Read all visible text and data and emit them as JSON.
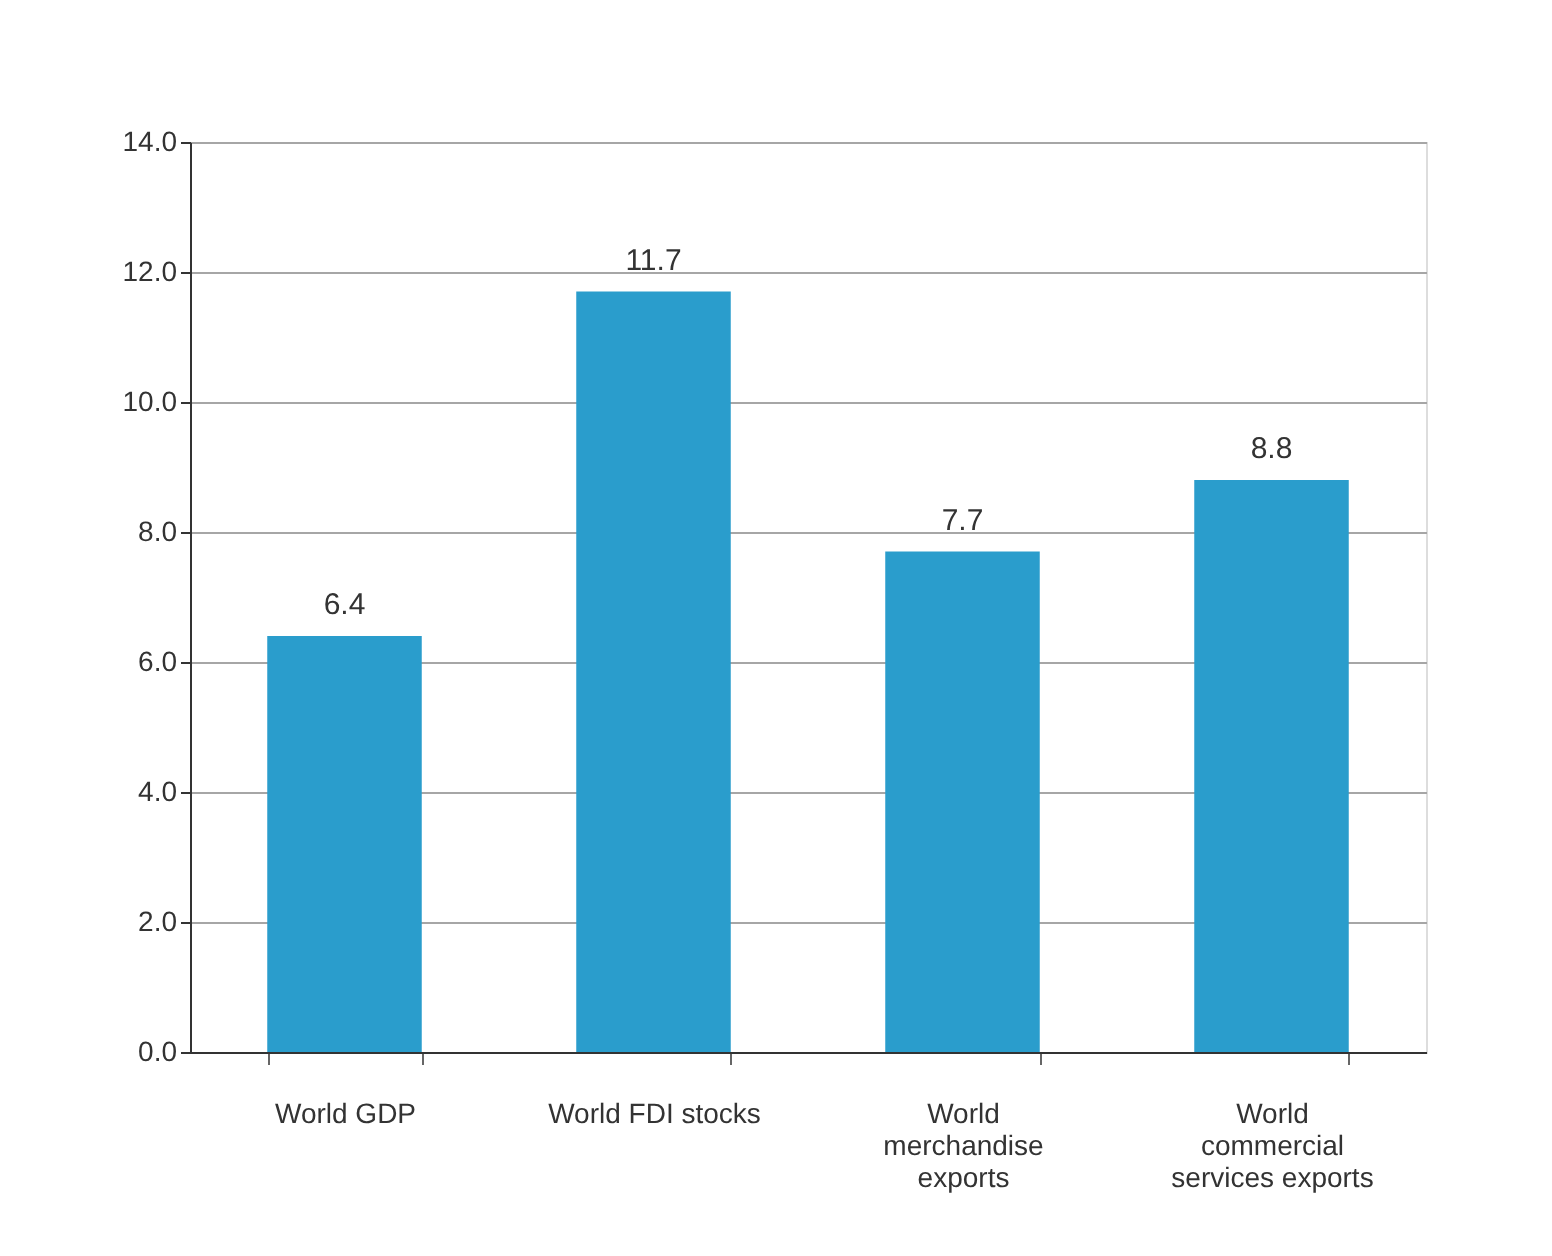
{
  "chart_data": {
    "type": "bar",
    "categories": [
      "World GDP",
      "World FDI stocks",
      "World\nmerchandise\nexports",
      "World\ncommercial\nservices exports"
    ],
    "values": [
      6.4,
      11.7,
      7.7,
      8.8
    ],
    "color": "#2a9dcc",
    "ylim": [
      0,
      14
    ],
    "yticks": [
      {
        "value": 0,
        "label": "0.0"
      },
      {
        "value": 2,
        "label": "2.0"
      },
      {
        "value": 4,
        "label": "4.0"
      },
      {
        "value": 6,
        "label": "6.0"
      },
      {
        "value": 8,
        "label": "8.0"
      },
      {
        "value": 10,
        "label": "10.0"
      },
      {
        "value": 12,
        "label": "12.0"
      },
      {
        "value": 14,
        "label": "14.0"
      }
    ],
    "grid": "y",
    "data_labels": true
  }
}
